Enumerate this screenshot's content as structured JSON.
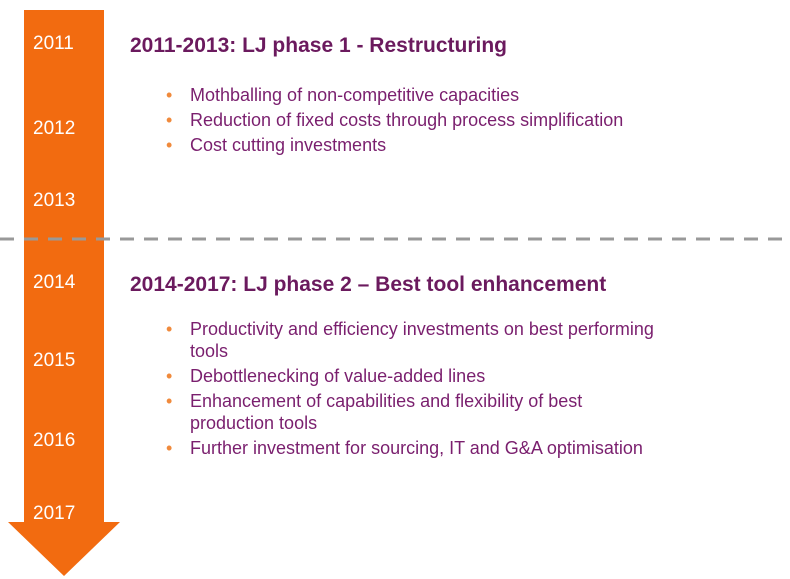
{
  "years": [
    "2011",
    "2012",
    "2013",
    "2014",
    "2015",
    "2016",
    "2017"
  ],
  "phases": [
    {
      "title": "2011-2013: LJ phase 1 - Restructuring",
      "bullets": [
        "Mothballing of non-competitive capacities",
        "Reduction of fixed costs through process simplification",
        "Cost cutting investments"
      ]
    },
    {
      "title": "2014-2017: LJ phase 2 – Best tool enhancement",
      "bullets": [
        "Productivity and efficiency investments on best performing tools",
        "Debottlenecking of value-added lines",
        "Enhancement of capabilities and flexibility of best production tools",
        "Further investment for sourcing, IT and G&A optimisation"
      ]
    }
  ]
}
